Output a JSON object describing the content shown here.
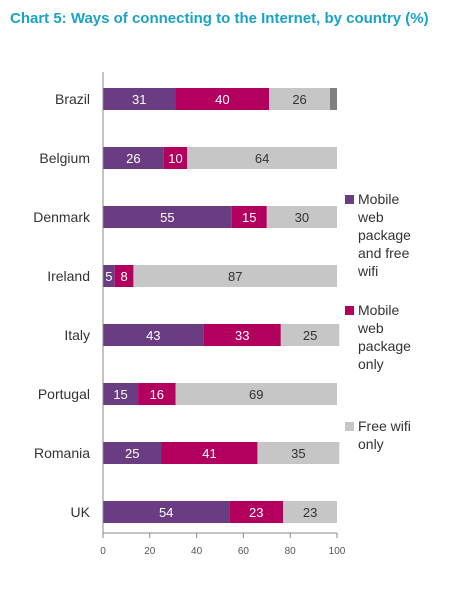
{
  "title": "Chart 5: Ways of connecting to the Internet, by country (%)",
  "chart_data": {
    "type": "bar",
    "orientation": "horizontal",
    "stacked": true,
    "categories": [
      "Brazil",
      "Belgium",
      "Denmark",
      "Ireland",
      "Italy",
      "Portugal",
      "Romania",
      "UK"
    ],
    "series": [
      {
        "name": "Mobile web package and free wifi",
        "color": "#6a3c82",
        "values": [
          31,
          26,
          55,
          5,
          43,
          15,
          25,
          54
        ]
      },
      {
        "name": "Mobile web package only",
        "color": "#b3005f",
        "values": [
          40,
          10,
          15,
          8,
          33,
          16,
          41,
          23
        ]
      },
      {
        "name": "Free wifi only",
        "color": "#c6c6c6",
        "values": [
          26,
          64,
          30,
          87,
          25,
          69,
          35,
          23
        ]
      }
    ],
    "remainder": {
      "color": "#808080",
      "values": [
        3,
        0,
        0,
        0,
        0,
        0,
        0,
        0
      ]
    },
    "xlim": [
      0,
      100
    ],
    "xticks": [
      0,
      20,
      40,
      60,
      80,
      100
    ],
    "grid": false,
    "legend_position": "right"
  },
  "legend_lines": [
    [
      "Mobile",
      "web",
      "package",
      "and free",
      "wifi"
    ],
    [
      "Mobile",
      "web",
      "package",
      "only"
    ],
    [
      "Free wifi",
      "only"
    ]
  ]
}
